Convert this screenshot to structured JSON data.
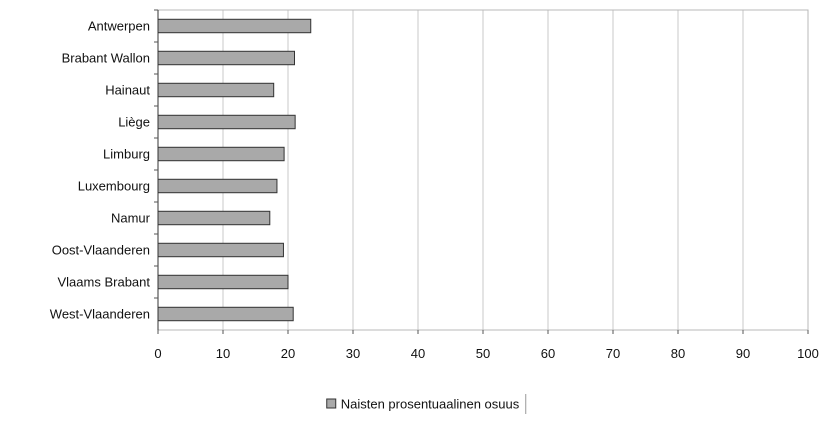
{
  "chart_data": {
    "type": "bar",
    "orientation": "horizontal",
    "categories": [
      "Antwerpen",
      "Brabant Wallon",
      "Hainaut",
      "Liège",
      "Limburg",
      "Luxembourg",
      "Namur",
      "Oost-Vlaanderen",
      "Vlaams Brabant",
      "West-Vlaanderen"
    ],
    "series": [
      {
        "name": "Naisten prosentuaalinen osuus",
        "values": [
          23.5,
          21.0,
          17.8,
          21.1,
          19.4,
          18.3,
          17.2,
          19.3,
          20.0,
          20.8
        ],
        "color": "#a9a9a9"
      }
    ],
    "x_ticks": [
      "0",
      "10",
      "20",
      "30",
      "40",
      "50",
      "60",
      "70",
      "80",
      "90",
      "100"
    ],
    "xlim": [
      0,
      100
    ],
    "grid": "vertical",
    "legend_position": "bottom",
    "title": "",
    "xlabel": "",
    "ylabel": ""
  }
}
